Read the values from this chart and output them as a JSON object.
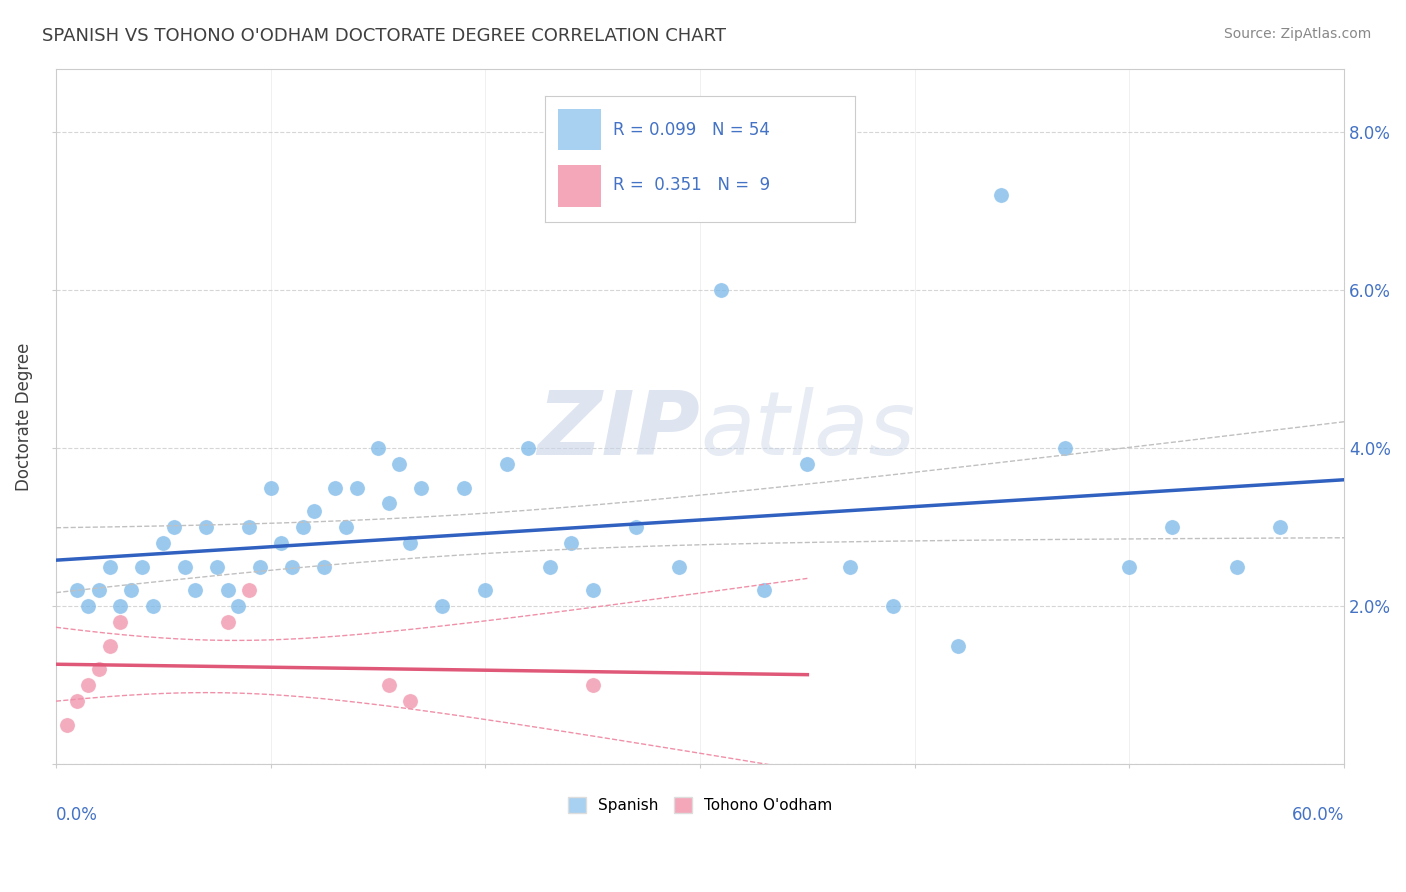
{
  "title": "SPANISH VS TOHONO O'ODHAM DOCTORATE DEGREE CORRELATION CHART",
  "source": "Source: ZipAtlas.com",
  "ylabel": "Doctorate Degree",
  "xlim": [
    0.0,
    0.6
  ],
  "ylim": [
    0.0,
    0.088
  ],
  "legend_color1": "#a8d0f0",
  "legend_color2": "#f4a7b9",
  "background_color": "#ffffff",
  "grid_color": "#cccccc",
  "spanish_color": "#7ab8e8",
  "tohono_color": "#f090a8",
  "trend_spanish_color": "#3060c0",
  "trend_tohono_color": "#e05878",
  "trend_ci_spanish_color": "#c0c0c0",
  "trend_ci_tohono_color": "#f090a8",
  "watermark_color": "#d0ddf0",
  "title_color": "#404040",
  "source_color": "#888888",
  "axis_label_color": "#4472c4",
  "ylabel_color": "#404040",
  "spanish_x": [
    0.01,
    0.015,
    0.02,
    0.025,
    0.03,
    0.035,
    0.04,
    0.045,
    0.05,
    0.055,
    0.06,
    0.065,
    0.07,
    0.075,
    0.08,
    0.085,
    0.09,
    0.095,
    0.1,
    0.105,
    0.11,
    0.115,
    0.12,
    0.125,
    0.13,
    0.135,
    0.14,
    0.15,
    0.155,
    0.16,
    0.165,
    0.17,
    0.18,
    0.19,
    0.2,
    0.21,
    0.22,
    0.23,
    0.24,
    0.25,
    0.27,
    0.29,
    0.31,
    0.33,
    0.35,
    0.37,
    0.39,
    0.42,
    0.44,
    0.47,
    0.5,
    0.52,
    0.55,
    0.57
  ],
  "spanish_y": [
    0.022,
    0.02,
    0.022,
    0.025,
    0.02,
    0.022,
    0.025,
    0.02,
    0.028,
    0.03,
    0.025,
    0.022,
    0.03,
    0.025,
    0.022,
    0.02,
    0.03,
    0.025,
    0.035,
    0.028,
    0.025,
    0.03,
    0.032,
    0.025,
    0.035,
    0.03,
    0.035,
    0.04,
    0.033,
    0.038,
    0.028,
    0.035,
    0.02,
    0.035,
    0.022,
    0.038,
    0.04,
    0.025,
    0.028,
    0.022,
    0.03,
    0.025,
    0.06,
    0.022,
    0.038,
    0.025,
    0.02,
    0.015,
    0.072,
    0.04,
    0.025,
    0.03,
    0.025,
    0.03
  ],
  "tohono_x": [
    0.005,
    0.01,
    0.015,
    0.02,
    0.025,
    0.03,
    0.08,
    0.09,
    0.155,
    0.165,
    0.25
  ],
  "tohono_y": [
    0.005,
    0.008,
    0.01,
    0.012,
    0.015,
    0.018,
    0.018,
    0.022,
    0.01,
    0.008,
    0.01
  ]
}
